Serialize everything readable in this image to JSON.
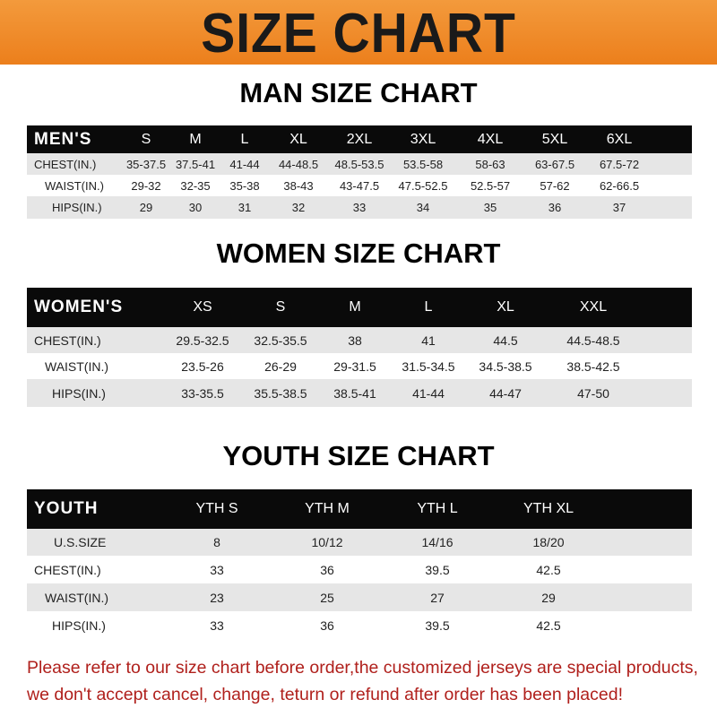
{
  "banner": {
    "title": "SIZE CHART",
    "color": "#ee8724"
  },
  "men": {
    "title": "MAN SIZE CHART",
    "header": [
      "MEN'S",
      "S",
      "M",
      "L",
      "XL",
      "2XL",
      "3XL",
      "4XL",
      "5XL",
      "6XL"
    ],
    "rows": [
      [
        "CHEST(IN.)",
        "35-37.5",
        "37.5-41",
        "41-44",
        "44-48.5",
        "48.5-53.5",
        "53.5-58",
        "58-63",
        "63-67.5",
        "67.5-72"
      ],
      [
        "WAIST(IN.)",
        "29-32",
        "32-35",
        "35-38",
        "38-43",
        "43-47.5",
        "47.5-52.5",
        "52.5-57",
        "57-62",
        "62-66.5"
      ],
      [
        "HIPS(IN.)",
        "29",
        "30",
        "31",
        "32",
        "33",
        "34",
        "35",
        "36",
        "37"
      ]
    ]
  },
  "women": {
    "title": "WOMEN SIZE CHART",
    "header": [
      "WOMEN'S",
      "XS",
      "S",
      "M",
      "L",
      "XL",
      "XXL"
    ],
    "rows": [
      [
        "CHEST(IN.)",
        "29.5-32.5",
        "32.5-35.5",
        "38",
        "41",
        "44.5",
        "44.5-48.5"
      ],
      [
        "WAIST(IN.)",
        "23.5-26",
        "26-29",
        "29-31.5",
        "31.5-34.5",
        "34.5-38.5",
        "38.5-42.5"
      ],
      [
        "HIPS(IN.)",
        "33-35.5",
        "35.5-38.5",
        "38.5-41",
        "41-44",
        "44-47",
        "47-50"
      ]
    ]
  },
  "youth": {
    "title": "YOUTH SIZE CHART",
    "header": [
      "YOUTH",
      "YTH S",
      "YTH M",
      "YTH L",
      "YTH XL"
    ],
    "rows": [
      [
        "U.S.SIZE",
        "8",
        "10/12",
        "14/16",
        "18/20"
      ],
      [
        "CHEST(IN.)",
        "33",
        "36",
        "39.5",
        "42.5"
      ],
      [
        "WAIST(IN.)",
        "23",
        "25",
        "27",
        "29"
      ],
      [
        "HIPS(IN.)",
        "33",
        "36",
        "39.5",
        "42.5"
      ]
    ]
  },
  "notice": {
    "line1": "Please refer to our size chart before order,the customized jerseys are special products,",
    "line2": "we don't accept cancel, change, teturn or refund after order has been placed!",
    "color": "#b0201c"
  }
}
